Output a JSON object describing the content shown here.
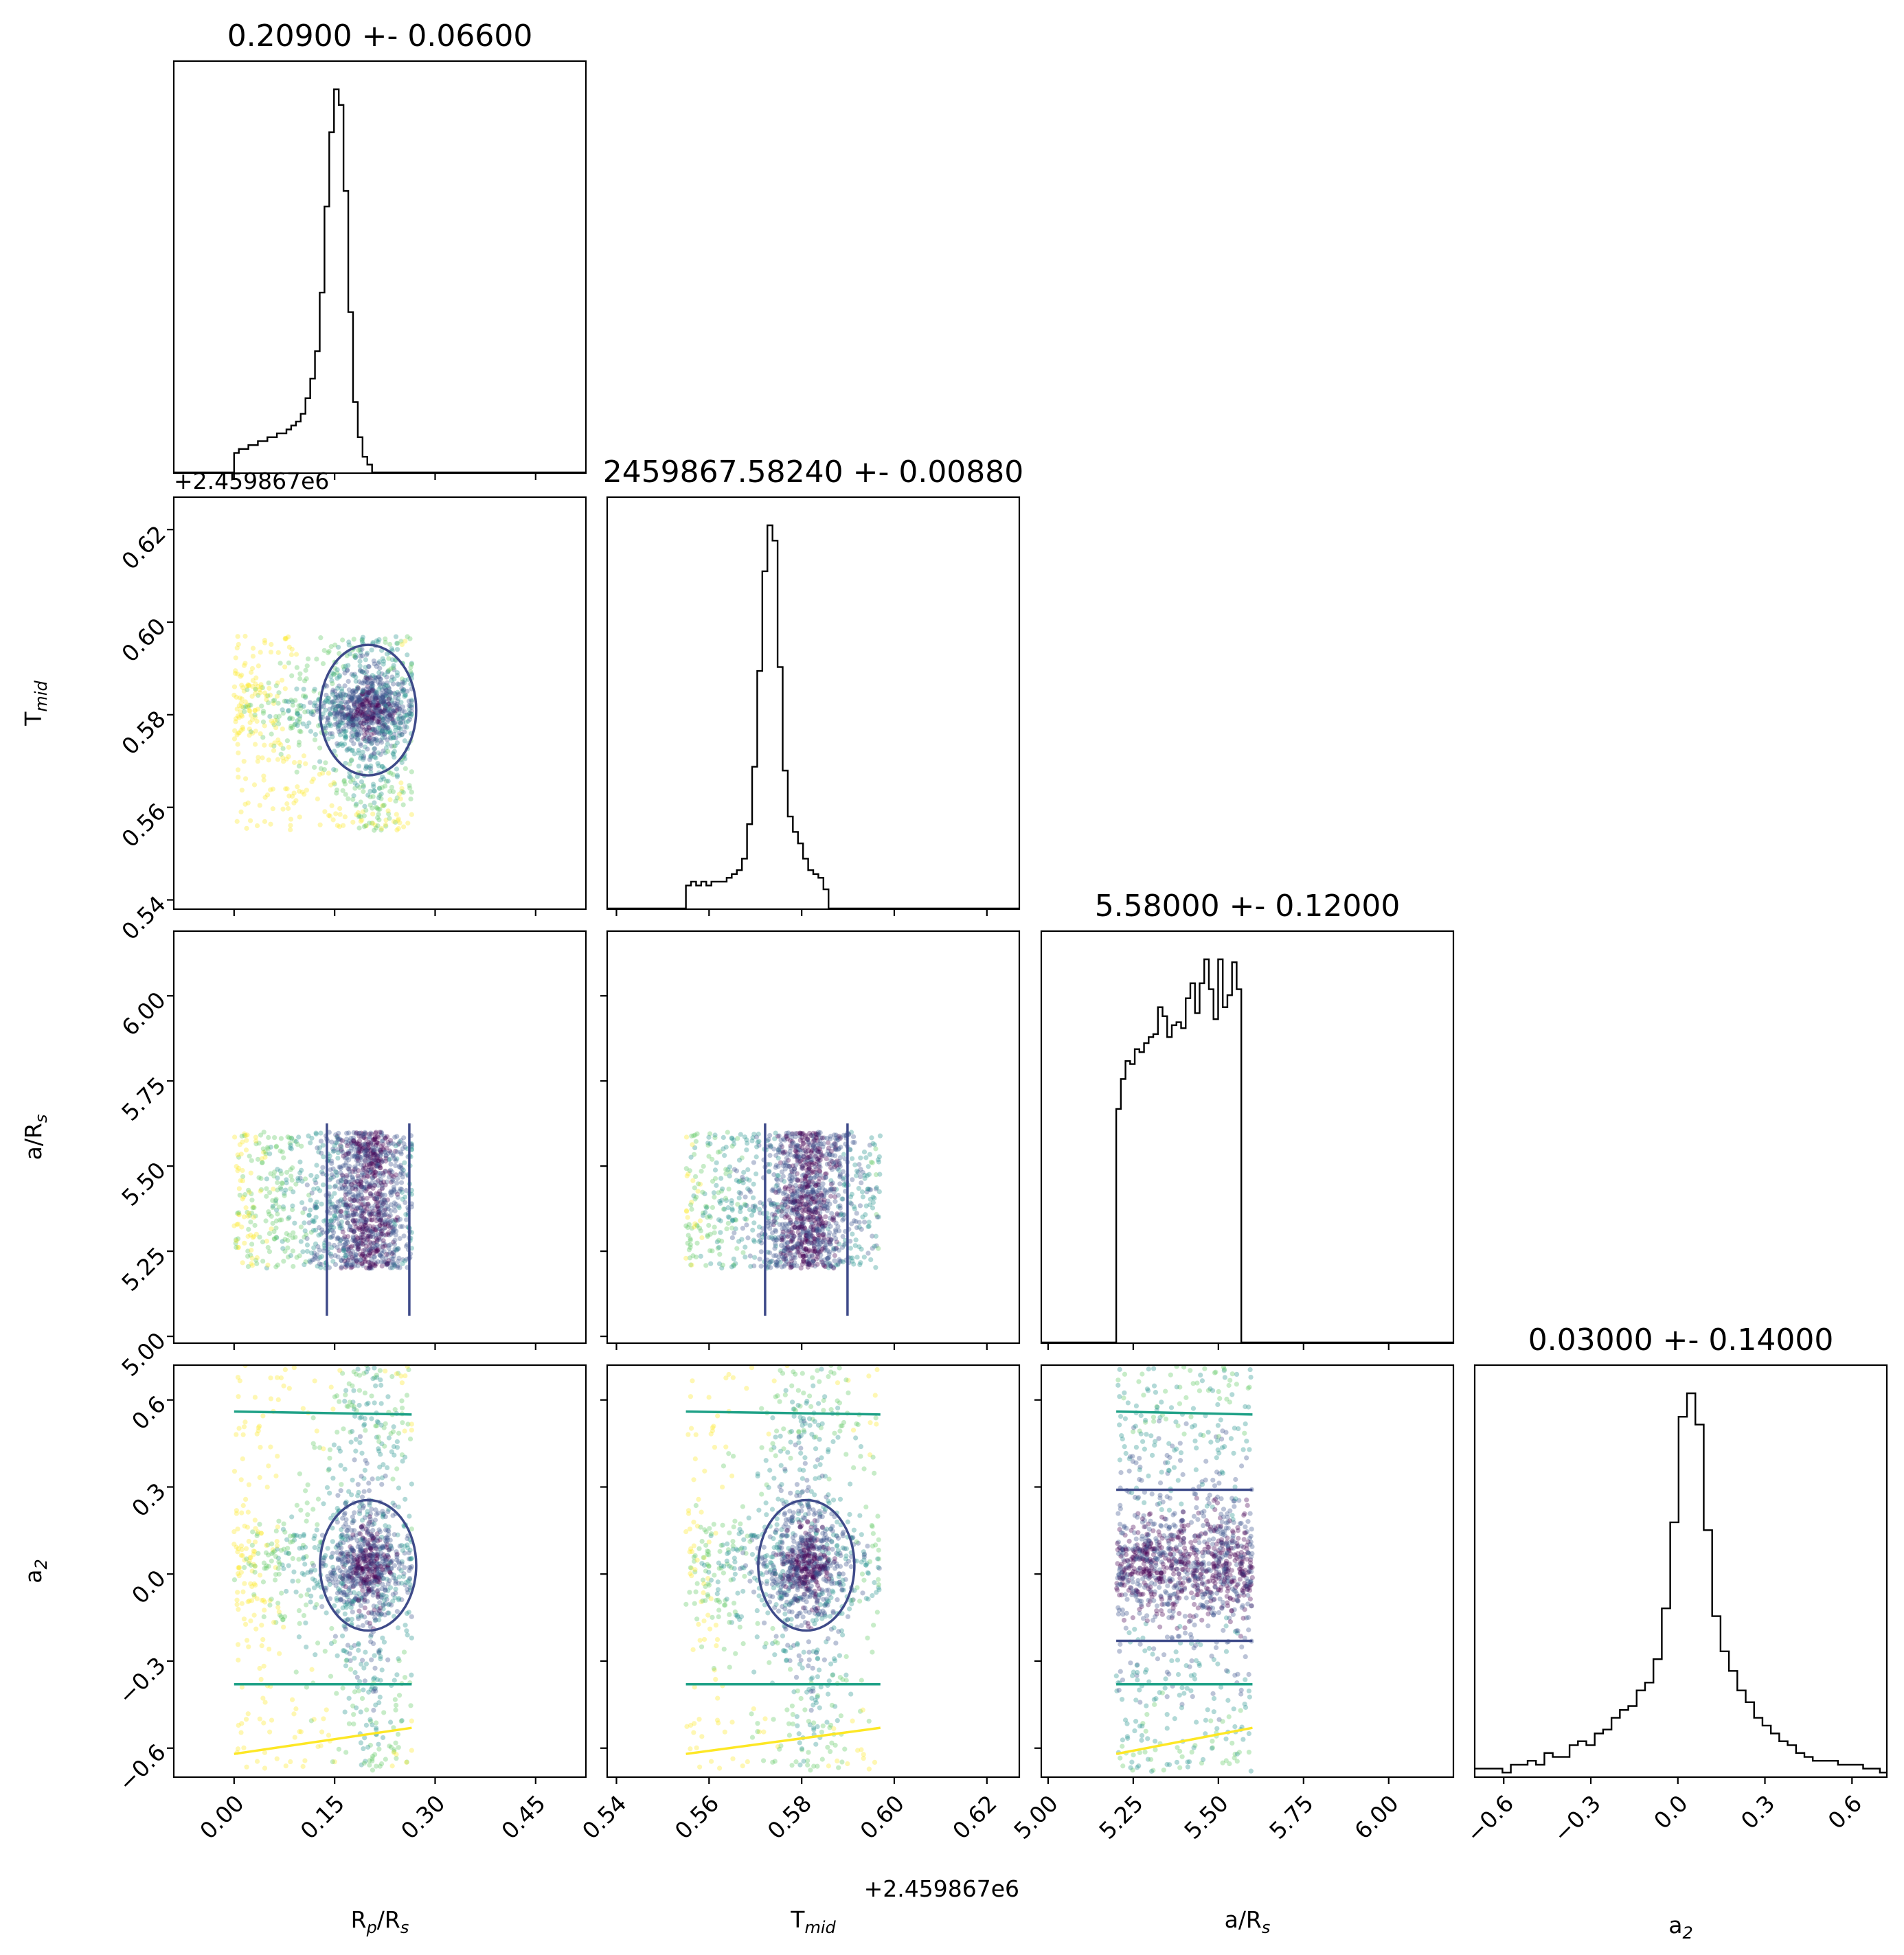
{
  "chart_data": {
    "type": "corner",
    "params": [
      {
        "key": "rp",
        "label": "R_p/R_s",
        "title": "0.20900 +- 0.06600",
        "range": [
          -0.09,
          0.525
        ],
        "ticks": [
          "0.00",
          "0.15",
          "0.30",
          "0.45"
        ],
        "tick_values": [
          0,
          0.15,
          0.3,
          0.45
        ],
        "hist": {
          "edges_start": 0.0,
          "bin_width": 0.0071,
          "counts": [
            0.05,
            0.06,
            0.06,
            0.07,
            0.07,
            0.08,
            0.08,
            0.09,
            0.09,
            0.1,
            0.1,
            0.11,
            0.12,
            0.13,
            0.15,
            0.19,
            0.24,
            0.31,
            0.46,
            0.68,
            0.87,
            0.98,
            0.94,
            0.72,
            0.41,
            0.18,
            0.09,
            0.04,
            0.02,
            0.0
          ]
        }
      },
      {
        "key": "tmid",
        "label": "T_mid",
        "title": "2459867.58240 +- 0.00880",
        "offset": "+2.459867e6",
        "range": [
          0.538,
          0.627
        ],
        "ticks": [
          "0.54",
          "0.56",
          "0.58",
          "0.60",
          "0.62"
        ],
        "tick_values": [
          0.54,
          0.56,
          0.58,
          0.6,
          0.62
        ],
        "hist": {
          "edges_start": 0.555,
          "bin_width": 0.0011,
          "counts": [
            0.06,
            0.07,
            0.06,
            0.07,
            0.06,
            0.07,
            0.07,
            0.07,
            0.08,
            0.09,
            0.1,
            0.13,
            0.22,
            0.37,
            0.62,
            0.88,
            1.0,
            0.96,
            0.63,
            0.36,
            0.24,
            0.2,
            0.17,
            0.13,
            0.1,
            0.09,
            0.08,
            0.05,
            0.0,
            0.0,
            0.0,
            0.0
          ]
        }
      },
      {
        "key": "ars",
        "label": "a/R_s",
        "title": "5.58000 +- 0.12000",
        "range": [
          4.98,
          6.19
        ],
        "ticks": [
          "5.00",
          "5.25",
          "5.50",
          "5.75",
          "6.00"
        ],
        "tick_values": [
          5.0,
          5.25,
          5.5,
          5.75,
          6.0
        ],
        "hist": {
          "edges_start": 5.2,
          "bin_width": 0.0136,
          "counts": [
            0.78,
            0.88,
            0.94,
            0.93,
            0.98,
            0.97,
            1.0,
            1.02,
            1.03,
            1.12,
            1.09,
            1.02,
            1.06,
            1.07,
            1.05,
            1.15,
            1.2,
            1.1,
            1.2,
            1.28,
            1.18,
            1.08,
            1.28,
            1.12,
            1.16,
            1.27,
            1.18,
            0.0,
            0.0,
            0.0
          ]
        }
      },
      {
        "key": "a2",
        "label": "a_2",
        "title": "0.03000 +- 0.14000",
        "range": [
          -0.7,
          0.72
        ],
        "ticks": [
          "−0.6",
          "−0.3",
          "0.0",
          "0.3",
          "0.6"
        ],
        "tick_values": [
          -0.6,
          -0.3,
          0.0,
          0.3,
          0.6
        ],
        "hist": {
          "edges_start": -0.72,
          "bin_width": 0.0289,
          "counts": [
            0.02,
            0.02,
            0.02,
            0.02,
            0.01,
            0.03,
            0.03,
            0.04,
            0.03,
            0.06,
            0.05,
            0.05,
            0.08,
            0.09,
            0.08,
            0.11,
            0.12,
            0.15,
            0.17,
            0.18,
            0.22,
            0.24,
            0.3,
            0.43,
            0.65,
            0.92,
            0.98,
            0.9,
            0.63,
            0.41,
            0.32,
            0.27,
            0.22,
            0.19,
            0.15,
            0.13,
            0.11,
            0.09,
            0.08,
            0.06,
            0.05,
            0.04,
            0.04,
            0.04,
            0.03,
            0.03,
            0.03,
            0.02,
            0.02,
            0.01
          ]
        }
      }
    ],
    "colors": {
      "hist": "#000000",
      "points": [
        "#440154",
        "#3b528b",
        "#21918c",
        "#5ec962",
        "#fde725"
      ],
      "contours": [
        "#3e4a89",
        "#1fa187",
        "#fde725"
      ]
    }
  }
}
